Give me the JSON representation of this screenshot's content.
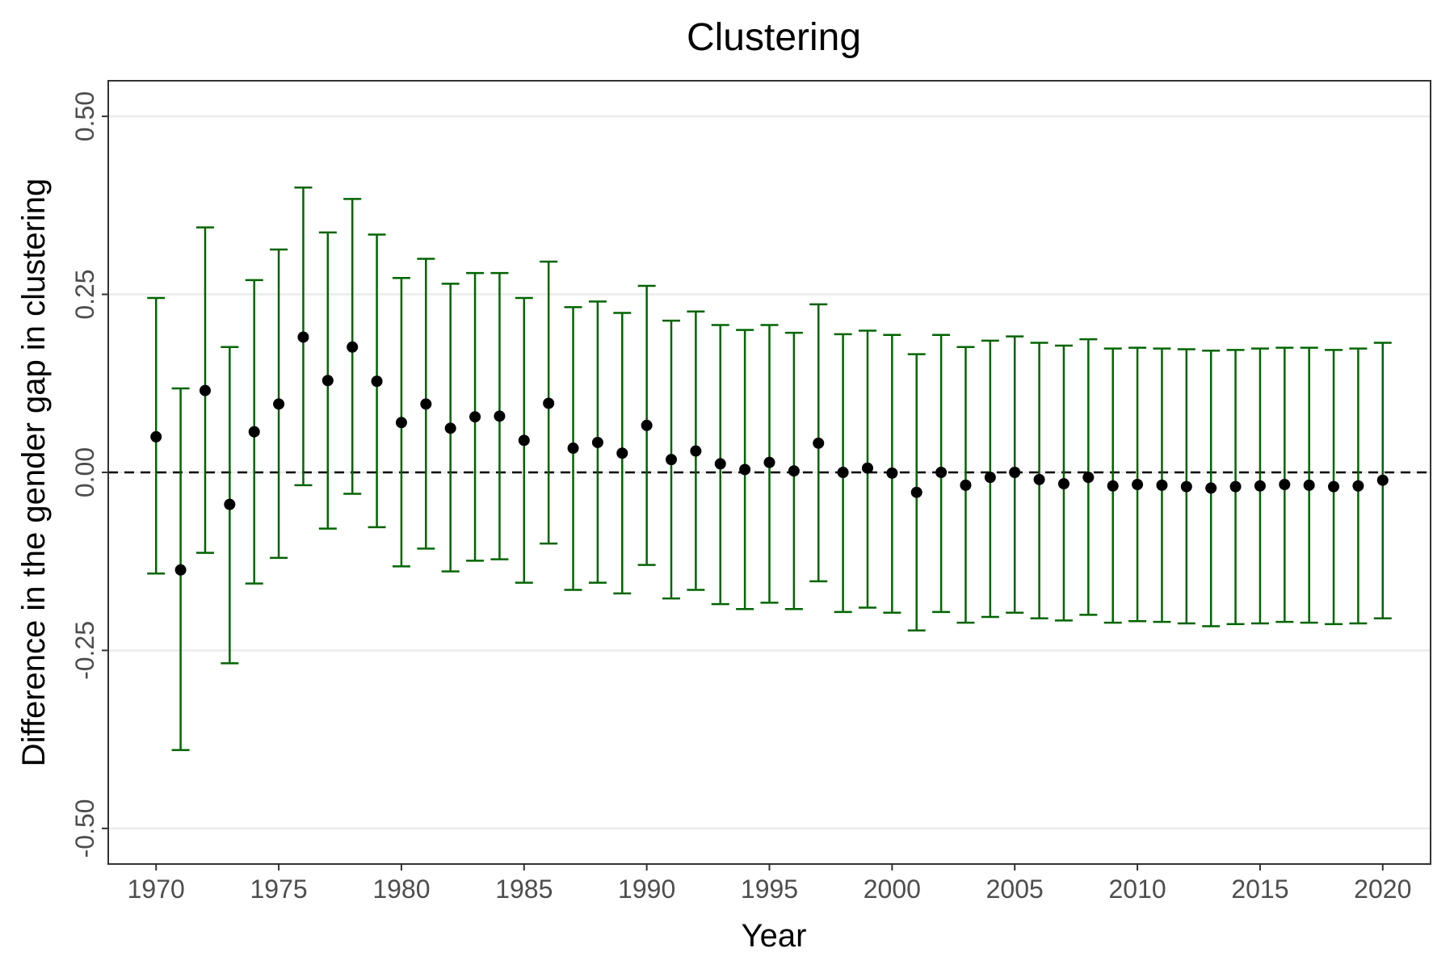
{
  "chart_data": {
    "type": "scatter",
    "title": "Clustering",
    "xlabel": "Year",
    "ylabel": "Difference in the gender gap in clustering",
    "xlim": [
      1968.05,
      2021.95
    ],
    "ylim": [
      -0.55,
      0.55
    ],
    "x_ticks": [
      1970,
      1975,
      1980,
      1985,
      1990,
      1995,
      2000,
      2005,
      2010,
      2015,
      2020
    ],
    "x_tick_labels": [
      "1970",
      "1975",
      "1980",
      "1985",
      "1990",
      "1995",
      "2000",
      "2005",
      "2010",
      "2015",
      "2020"
    ],
    "y_ticks": [
      -0.5,
      -0.25,
      0,
      0.25,
      0.5
    ],
    "y_tick_labels": [
      "-0.50",
      "-0.25",
      "0.00",
      "0.25",
      "0.50"
    ],
    "reference_line": {
      "y": 0,
      "style": "dashed"
    },
    "grid": "horizontal major",
    "legend": "none",
    "colors": {
      "points": "#000000",
      "error_bars": "#006400",
      "reference_line": "#000000",
      "grid": "#ebebeb",
      "panel_border": "#333333"
    },
    "x": [
      1970,
      1971,
      1972,
      1973,
      1974,
      1975,
      1976,
      1977,
      1978,
      1979,
      1980,
      1981,
      1982,
      1983,
      1984,
      1985,
      1986,
      1987,
      1988,
      1989,
      1990,
      1991,
      1992,
      1993,
      1994,
      1995,
      1996,
      1997,
      1998,
      1999,
      2000,
      2001,
      2002,
      2003,
      2004,
      2005,
      2006,
      2007,
      2008,
      2009,
      2010,
      2011,
      2012,
      2013,
      2014,
      2015,
      2016,
      2017,
      2018,
      2019,
      2020
    ],
    "y": [
      0.05,
      -0.137,
      0.115,
      -0.045,
      0.057,
      0.096,
      0.19,
      0.129,
      0.176,
      0.128,
      0.07,
      0.096,
      0.062,
      0.078,
      0.079,
      0.045,
      0.097,
      0.034,
      0.042,
      0.027,
      0.066,
      0.018,
      0.03,
      0.012,
      0.004,
      0.014,
      0.002,
      0.041,
      0.0,
      0.006,
      -0.001,
      -0.028,
      0.0,
      -0.018,
      -0.007,
      0.0,
      -0.01,
      -0.016,
      -0.007,
      -0.019,
      -0.017,
      -0.018,
      -0.02,
      -0.022,
      -0.02,
      -0.019,
      -0.017,
      -0.018,
      -0.02,
      -0.019,
      -0.011
    ],
    "y_lower": [
      -0.142,
      -0.39,
      -0.113,
      -0.268,
      -0.156,
      -0.12,
      -0.018,
      -0.079,
      -0.03,
      -0.077,
      -0.132,
      -0.107,
      -0.139,
      -0.124,
      -0.122,
      -0.155,
      -0.1,
      -0.165,
      -0.155,
      -0.17,
      -0.13,
      -0.177,
      -0.165,
      -0.185,
      -0.192,
      -0.183,
      -0.192,
      -0.153,
      -0.196,
      -0.19,
      -0.197,
      -0.222,
      -0.196,
      -0.211,
      -0.203,
      -0.197,
      -0.205,
      -0.208,
      -0.2,
      -0.211,
      -0.209,
      -0.21,
      -0.212,
      -0.216,
      -0.213,
      -0.212,
      -0.21,
      -0.211,
      -0.213,
      -0.212,
      -0.205
    ],
    "y_upper": [
      0.245,
      0.118,
      0.344,
      0.176,
      0.27,
      0.313,
      0.4,
      0.337,
      0.384,
      0.334,
      0.273,
      0.3,
      0.265,
      0.28,
      0.28,
      0.245,
      0.296,
      0.232,
      0.24,
      0.224,
      0.262,
      0.213,
      0.226,
      0.207,
      0.2,
      0.207,
      0.196,
      0.236,
      0.194,
      0.199,
      0.193,
      0.166,
      0.193,
      0.176,
      0.185,
      0.191,
      0.182,
      0.178,
      0.187,
      0.174,
      0.175,
      0.174,
      0.173,
      0.171,
      0.172,
      0.174,
      0.175,
      0.175,
      0.172,
      0.174,
      0.182
    ]
  }
}
